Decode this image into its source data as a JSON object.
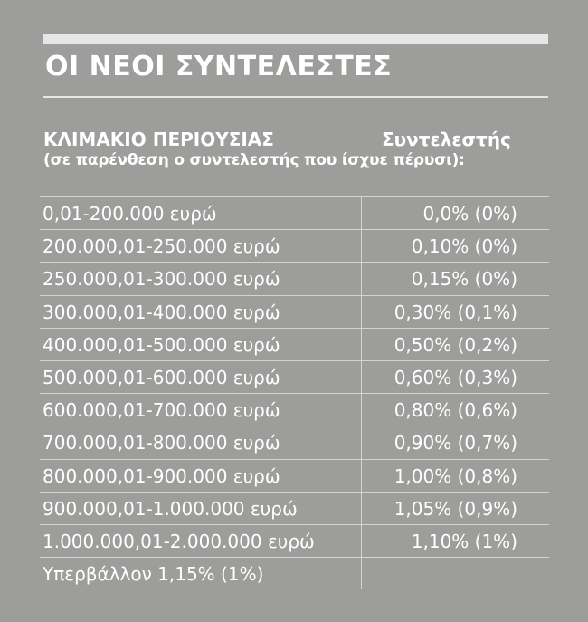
{
  "title": "ΟΙ ΝΕΟΙ ΣΥΝΤΕΛΕΣΤΕΣ",
  "header": {
    "left": "ΚΛΙΜΑΚΙΟ ΠΕΡΙΟΥΣΙΑΣ",
    "right": "Συντελεστής",
    "subtitle": "(σε παρένθεση ο συντελεστής που ίσχυε πέρυσι):"
  },
  "rows": [
    {
      "range": "0,01-200.000  ευρώ",
      "rate": "0,0% (0%)"
    },
    {
      "range": "200.000,01-250.000 ευρώ",
      "rate": "0,10% (0%)"
    },
    {
      "range": "250.000,01-300.000 ευρώ",
      "rate": "0,15% (0%)"
    },
    {
      "range": "300.000,01-400.000 ευρώ",
      "rate": "0,30% (0,1%)"
    },
    {
      "range": "400.000,01-500.000 ευρώ",
      "rate": "0,50% (0,2%)"
    },
    {
      "range": "500.000,01-600.000 ευρώ",
      "rate": "0,60% (0,3%)"
    },
    {
      "range": "600.000,01-700.000 ευρώ",
      "rate": "0,80% (0,6%)"
    },
    {
      "range": "700.000,01-800.000 ευρώ",
      "rate": "0,90% (0,7%)"
    },
    {
      "range": "800.000,01-900.000 ευρώ",
      "rate": "1,00% (0,8%)"
    },
    {
      "range": "900.000,01-1.000.000 ευρώ",
      "rate": "1,05% (0,9%)"
    },
    {
      "range": "1.000.000,01-2.000.000 ευρώ",
      "rate": "1,10% (1%)"
    },
    {
      "range": "Υπερβάλλον  1,15% (1%)",
      "rate": ""
    }
  ],
  "colors": {
    "background": "#9d9d9c",
    "rule": "#e6e6e6",
    "text": "#ffffff"
  }
}
